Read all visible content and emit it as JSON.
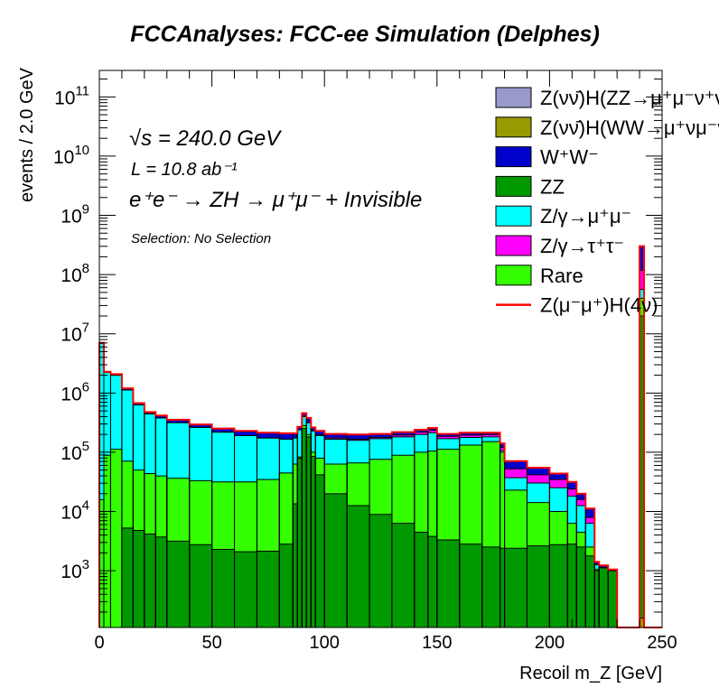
{
  "chart_data": {
    "type": "bar",
    "subtype": "stacked-histogram",
    "title": "FCCAnalyses: FCC-ee Simulation (Delphes)",
    "xlabel": "Recoil m_Z [GeV]",
    "ylabel": "events / 2.0 GeV",
    "xlim": [
      0,
      250
    ],
    "ylim": [
      110,
      280000000000
    ],
    "yscale": "log",
    "xticks": [
      "0",
      "50",
      "100",
      "150",
      "200",
      "250"
    ],
    "yticks_exponents": [
      "3",
      "4",
      "5",
      "6",
      "7",
      "8",
      "9",
      "10",
      "11"
    ],
    "ytick_base": "10",
    "legend_position": "top-right",
    "annotations": {
      "sqrt_s": "√s = 240.0 GeV",
      "lumi": "L = 10.8 ab⁻¹",
      "process": "e⁺e⁻ → ZH → μ⁺μ⁻ + Invisible",
      "selection": "Selection: No Selection"
    },
    "value_encoding": "log10 of cumulative stacked events per bin (null = empty)",
    "bin_edges": [
      0,
      2,
      5,
      10,
      15,
      20,
      25,
      30,
      40,
      50,
      60,
      70,
      80,
      86,
      88,
      90,
      92,
      94,
      96,
      100,
      110,
      120,
      130,
      140,
      146,
      150,
      160,
      170,
      178,
      180,
      190,
      200,
      208,
      212,
      216,
      220,
      222,
      226,
      230,
      240,
      242,
      250
    ],
    "series": [
      {
        "name": "Z(νν̄)H(WW→μ⁺νμ⁻ν̄)",
        "color": "#999900",
        "cumulative_log10": [
          null,
          null,
          null,
          null,
          null,
          null,
          null,
          null,
          null,
          null,
          null,
          null,
          null,
          null,
          null,
          null,
          null,
          null,
          null,
          null,
          null,
          null,
          null,
          null,
          null,
          null,
          null,
          null,
          null,
          null,
          null,
          null,
          null,
          null,
          null,
          null,
          null,
          null,
          null,
          2.2,
          null
        ]
      },
      {
        "name": "ZZ",
        "color": "#009900",
        "cumulative_log10": [
          null,
          null,
          null,
          3.72,
          3.68,
          3.62,
          3.57,
          3.5,
          3.44,
          3.36,
          3.32,
          3.33,
          3.45,
          4.13,
          4.9,
          5.4,
          5.26,
          4.93,
          4.62,
          4.3,
          4.1,
          3.95,
          3.8,
          3.65,
          3.58,
          3.52,
          3.45,
          3.4,
          3.38,
          3.38,
          3.42,
          3.44,
          3.45,
          3.4,
          3.25,
          3.0,
          3.05,
          3.0,
          null,
          7.3,
          null
        ]
      },
      {
        "name": "Rare",
        "color": "#33ff00",
        "cumulative_log10": [
          4.2,
          4.95,
          5.05,
          4.85,
          4.7,
          4.64,
          4.6,
          4.56,
          4.52,
          4.5,
          4.5,
          4.54,
          4.65,
          4.8,
          4.92,
          5.45,
          5.3,
          5.0,
          4.9,
          4.8,
          4.82,
          4.88,
          4.95,
          5.0,
          5.02,
          5.05,
          5.12,
          5.18,
          5.0,
          4.36,
          4.15,
          4.0,
          3.8,
          3.65,
          3.4,
          3.02,
          3.05,
          3.0,
          null,
          7.6,
          null
        ]
      },
      {
        "name": "Z/γ→μ⁺μ⁻",
        "color": "#00ffff",
        "cumulative_log10": [
          6.84,
          6.35,
          6.3,
          6.05,
          5.8,
          5.65,
          5.58,
          5.5,
          5.42,
          5.34,
          5.28,
          5.24,
          5.22,
          5.24,
          5.38,
          5.6,
          5.5,
          5.36,
          5.28,
          5.22,
          5.2,
          5.23,
          5.26,
          5.3,
          5.33,
          5.23,
          5.25,
          5.26,
          5.03,
          4.57,
          4.48,
          4.4,
          4.26,
          4.1,
          3.8,
          3.1,
          3.05,
          3.0,
          null,
          7.75,
          null
        ]
      },
      {
        "name": "Z/γ→τ⁺τ⁻",
        "color": "#ff00ff",
        "cumulative_log10": [
          6.84,
          6.35,
          6.3,
          6.05,
          5.8,
          5.65,
          5.58,
          5.5,
          5.42,
          5.34,
          5.28,
          5.24,
          5.22,
          5.24,
          5.38,
          5.6,
          5.5,
          5.36,
          5.29,
          5.24,
          5.22,
          5.25,
          5.29,
          5.34,
          5.37,
          5.27,
          5.29,
          5.3,
          5.08,
          4.72,
          4.62,
          4.54,
          4.38,
          4.2,
          3.9,
          3.1,
          3.05,
          3.0,
          null,
          8.07,
          null
        ]
      },
      {
        "name": "W⁺W⁻",
        "color": "#0000cc",
        "cumulative_log10": [
          6.85,
          6.36,
          6.32,
          6.08,
          5.83,
          5.68,
          5.62,
          5.55,
          5.47,
          5.4,
          5.36,
          5.33,
          5.32,
          5.32,
          5.43,
          5.66,
          5.58,
          5.42,
          5.36,
          5.31,
          5.3,
          5.31,
          5.34,
          5.38,
          5.41,
          5.31,
          5.33,
          5.33,
          5.15,
          4.85,
          4.74,
          4.64,
          4.5,
          4.3,
          4.05,
          3.15,
          3.09,
          3.02,
          null,
          8.48,
          null
        ]
      }
    ],
    "legend": [
      {
        "label": "Z(νν̄)H(ZZ→μ⁺μ⁻ν⁺ν⁻)",
        "color": "#9999cc",
        "style": "box"
      },
      {
        "label": "Z(νν̄)H(WW→μ⁺νμ⁻ν̄)",
        "color": "#999900",
        "style": "box"
      },
      {
        "label": "W⁺W⁻",
        "color": "#0000cc",
        "style": "box"
      },
      {
        "label": "ZZ",
        "color": "#009900",
        "style": "box"
      },
      {
        "label": "Z/γ→μ⁺μ⁻",
        "color": "#00ffff",
        "style": "box"
      },
      {
        "label": "Z/γ→τ⁺τ⁻",
        "color": "#ff00ff",
        "style": "box"
      },
      {
        "label": "Rare",
        "color": "#33ff00",
        "style": "box"
      },
      {
        "label": "Z(μ⁻μ⁺)H(4ν)",
        "color": "#ff0000",
        "style": "line"
      }
    ]
  }
}
